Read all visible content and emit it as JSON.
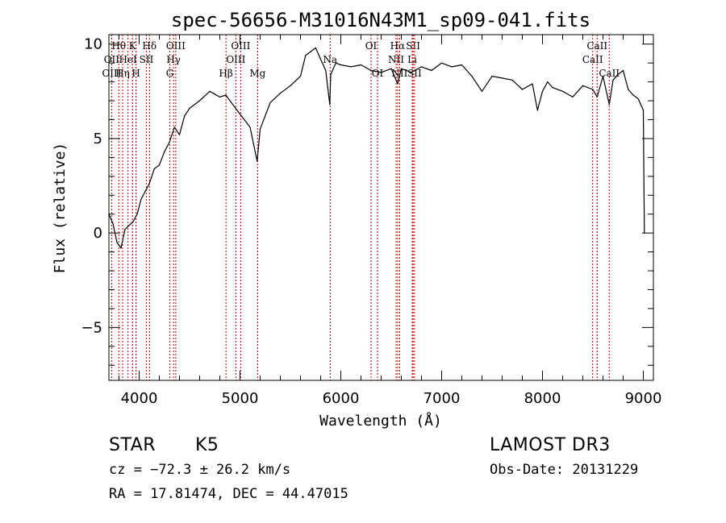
{
  "chart_data": {
    "type": "line",
    "title": "spec-56656-M31016N43M1_sp09-041.fits",
    "xlabel": "Wavelength (Å)",
    "ylabel": "Flux (relative)",
    "xlim": [
      3700,
      9100
    ],
    "ylim": [
      -7.8,
      10.5
    ],
    "xticks": [
      4000,
      5000,
      6000,
      7000,
      8000,
      9000
    ],
    "xtick_labels": [
      "4000",
      "5000",
      "6000",
      "7000",
      "8000",
      "9000"
    ],
    "yticks": [
      -5,
      0,
      5,
      10
    ],
    "ytick_labels": [
      "−5",
      "0",
      "5",
      "10"
    ],
    "series": [
      {
        "name": "flux",
        "x": [
          3700,
          3740,
          3780,
          3820,
          3860,
          3900,
          3940,
          3980,
          4020,
          4060,
          4100,
          4150,
          4200,
          4250,
          4300,
          4350,
          4400,
          4450,
          4500,
          4600,
          4700,
          4800,
          4860,
          4900,
          5000,
          5100,
          5170,
          5200,
          5300,
          5400,
          5500,
          5600,
          5650,
          5700,
          5750,
          5800,
          5850,
          5890,
          5900,
          5950,
          6000,
          6100,
          6200,
          6300,
          6400,
          6500,
          6563,
          6600,
          6700,
          6800,
          6900,
          7000,
          7100,
          7200,
          7300,
          7400,
          7500,
          7600,
          7700,
          7800,
          7900,
          7950,
          8000,
          8050,
          8100,
          8200,
          8300,
          8400,
          8500,
          8542,
          8600,
          8662,
          8700,
          8750,
          8800,
          8850,
          8900,
          8950,
          9000,
          9010
        ],
        "y": [
          1.0,
          0.5,
          -0.5,
          -0.8,
          0.2,
          0.4,
          0.6,
          1.0,
          1.8,
          2.2,
          2.6,
          3.4,
          3.6,
          4.3,
          4.8,
          5.6,
          5.2,
          6.2,
          6.6,
          7.0,
          7.5,
          7.2,
          7.3,
          7.0,
          6.3,
          5.6,
          3.8,
          5.5,
          6.9,
          7.4,
          7.8,
          8.3,
          9.4,
          9.6,
          9.8,
          9.2,
          8.6,
          6.8,
          8.4,
          9.0,
          8.9,
          8.8,
          8.9,
          8.6,
          8.5,
          8.7,
          7.9,
          8.7,
          8.5,
          8.8,
          8.6,
          9.0,
          8.8,
          8.9,
          8.3,
          7.5,
          8.3,
          8.2,
          8.1,
          7.6,
          7.9,
          6.5,
          7.5,
          8.0,
          7.7,
          7.5,
          7.2,
          7.8,
          7.6,
          7.2,
          8.3,
          6.8,
          8.1,
          8.4,
          8.6,
          7.6,
          7.3,
          7.1,
          6.5,
          0.0
        ]
      }
    ],
    "line_markers": [
      {
        "label": "Hθ",
        "x": 3798,
        "row": 1
      },
      {
        "label": "OII",
        "x": 3727,
        "row": 2
      },
      {
        "label": "OIII",
        "x": 3728,
        "row": 3
      },
      {
        "label": "Hη",
        "x": 3836,
        "row": 3
      },
      {
        "label": "HeI",
        "x": 3889,
        "row": 2
      },
      {
        "label": "K",
        "x": 3934,
        "row": 1
      },
      {
        "label": "H",
        "x": 3969,
        "row": 3
      },
      {
        "label": "SII",
        "x": 4072,
        "row": 2
      },
      {
        "label": "Hδ",
        "x": 4102,
        "row": 1
      },
      {
        "label": "G",
        "x": 4304,
        "row": 3
      },
      {
        "label": "Hγ",
        "x": 4341,
        "row": 2
      },
      {
        "label": "OIII",
        "x": 4363,
        "row": 1
      },
      {
        "label": "Hβ",
        "x": 4861,
        "row": 3
      },
      {
        "label": "OIII",
        "x": 4959,
        "row": 2
      },
      {
        "label": "OIII",
        "x": 5007,
        "row": 1
      },
      {
        "label": "Mg",
        "x": 5175,
        "row": 3
      },
      {
        "label": "Na",
        "x": 5894,
        "row": 2
      },
      {
        "label": "OI",
        "x": 6300,
        "row": 1
      },
      {
        "label": "OI",
        "x": 6364,
        "row": 3
      },
      {
        "label": "NII",
        "x": 6548,
        "row": 2
      },
      {
        "label": "Hα",
        "x": 6563,
        "row": 1
      },
      {
        "label": "NII",
        "x": 6583,
        "row": 3
      },
      {
        "label": "SII",
        "x": 6717,
        "row": 1
      },
      {
        "label": "Li",
        "x": 6708,
        "row": 2
      },
      {
        "label": "SII",
        "x": 6731,
        "row": 3
      },
      {
        "label": "CaII",
        "x": 8498,
        "row": 2
      },
      {
        "label": "CaII",
        "x": 8542,
        "row": 1
      },
      {
        "label": "CaII",
        "x": 8662,
        "row": 3
      }
    ],
    "grid": false,
    "legend": "none"
  },
  "info": {
    "object_class": "STAR",
    "subclass": "K5",
    "survey": "LAMOST DR3",
    "redshift_line": "cz = −72.3 ± 26.2 km/s",
    "obs_date": "Obs-Date: 20131229",
    "coords": "RA =  17.81474, DEC =  44.47015"
  },
  "colors": {
    "spectrum": "#000000",
    "marker": "#c00000",
    "axes": "#000000",
    "background": "#ffffff"
  }
}
